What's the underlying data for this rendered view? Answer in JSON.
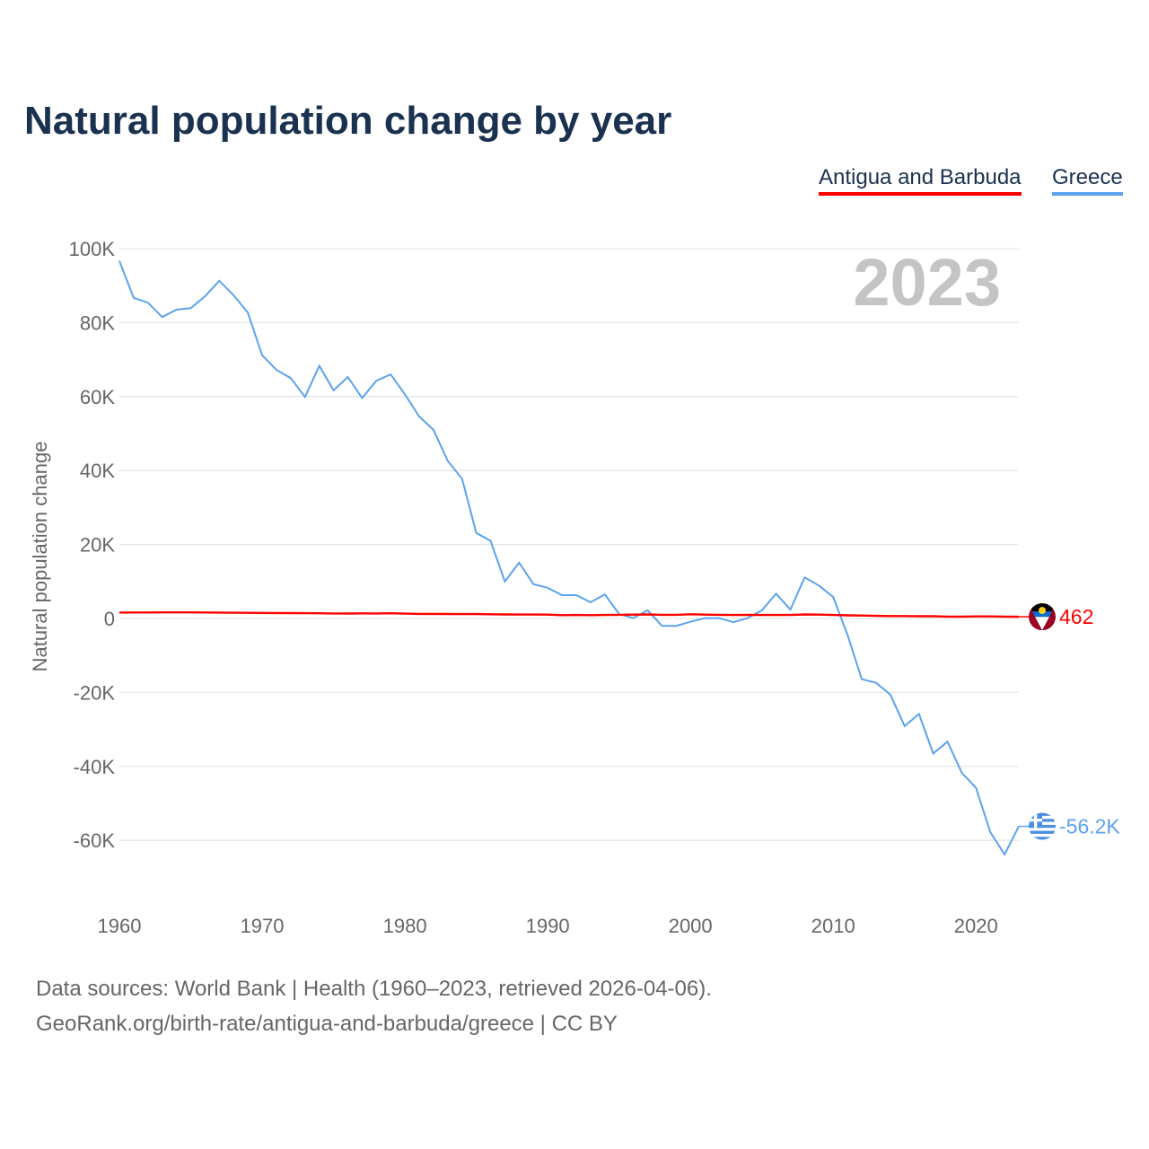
{
  "chart_data": {
    "type": "line",
    "title": "Natural population change by year",
    "xlabel": "",
    "ylabel": "Natural population change",
    "xlim": [
      1960,
      2023
    ],
    "ylim": [
      -70000,
      100000
    ],
    "x_ticks": [
      1960,
      1970,
      1980,
      1990,
      2000,
      2010,
      2020
    ],
    "y_ticks": [
      100000,
      80000,
      60000,
      40000,
      20000,
      0,
      -20000,
      -40000,
      -60000
    ],
    "y_tick_labels": [
      "100K",
      "80K",
      "60K",
      "40K",
      "20K",
      "0",
      "-20K",
      "-40K",
      "-60K"
    ],
    "grid": true,
    "legend_placement": "top-right",
    "year_label": "2023",
    "x": [
      1960,
      1961,
      1962,
      1963,
      1964,
      1965,
      1966,
      1967,
      1968,
      1969,
      1970,
      1971,
      1972,
      1973,
      1974,
      1975,
      1976,
      1977,
      1978,
      1979,
      1980,
      1981,
      1982,
      1983,
      1984,
      1985,
      1986,
      1987,
      1988,
      1989,
      1990,
      1991,
      1992,
      1993,
      1994,
      1995,
      1996,
      1997,
      1998,
      1999,
      2000,
      2001,
      2002,
      2003,
      2004,
      2005,
      2006,
      2007,
      2008,
      2009,
      2010,
      2011,
      2012,
      2013,
      2014,
      2015,
      2016,
      2017,
      2018,
      2019,
      2020,
      2021,
      2022,
      2023
    ],
    "series": [
      {
        "name": "Antigua and Barbuda",
        "color": "#ff0000",
        "end_label": "462",
        "flag": "antigua-flag",
        "values": [
          1600,
          1620,
          1630,
          1650,
          1660,
          1650,
          1620,
          1590,
          1560,
          1530,
          1500,
          1480,
          1460,
          1420,
          1400,
          1350,
          1330,
          1380,
          1350,
          1400,
          1300,
          1250,
          1230,
          1220,
          1200,
          1200,
          1150,
          1100,
          1080,
          1080,
          1050,
          900,
          950,
          900,
          950,
          1000,
          1050,
          1100,
          1000,
          1000,
          1150,
          1050,
          1000,
          950,
          1000,
          950,
          950,
          950,
          1100,
          1050,
          950,
          850,
          800,
          700,
          650,
          650,
          600,
          600,
          500,
          500,
          550,
          550,
          520,
          462
        ]
      },
      {
        "name": "Greece",
        "color": "#5ba3ec",
        "end_label": "-56.2K",
        "flag": "greece-flag",
        "values": [
          96700,
          86700,
          85400,
          81500,
          83500,
          83900,
          87100,
          91300,
          87400,
          82700,
          71200,
          67200,
          65000,
          59900,
          68300,
          61700,
          65300,
          59600,
          64300,
          66000,
          60600,
          54600,
          51000,
          42600,
          37800,
          23100,
          21000,
          10000,
          15100,
          9300,
          8300,
          6300,
          6300,
          4400,
          6500,
          1200,
          100,
          2200,
          -2000,
          -2000,
          -900,
          100,
          100,
          -1000,
          100,
          2200,
          6700,
          2400,
          11100,
          8900,
          5800,
          -4400,
          -16400,
          -17400,
          -20600,
          -29100,
          -25800,
          -36500,
          -33300,
          -41700,
          -45800,
          -57800,
          -63800,
          -56200
        ]
      }
    ]
  },
  "source_lines": [
    "Data sources: World Bank | Health (1960–2023, retrieved 2026-04-06).",
    "GeoRank.org/birth-rate/antigua-and-barbuda/greece | CC BY"
  ]
}
